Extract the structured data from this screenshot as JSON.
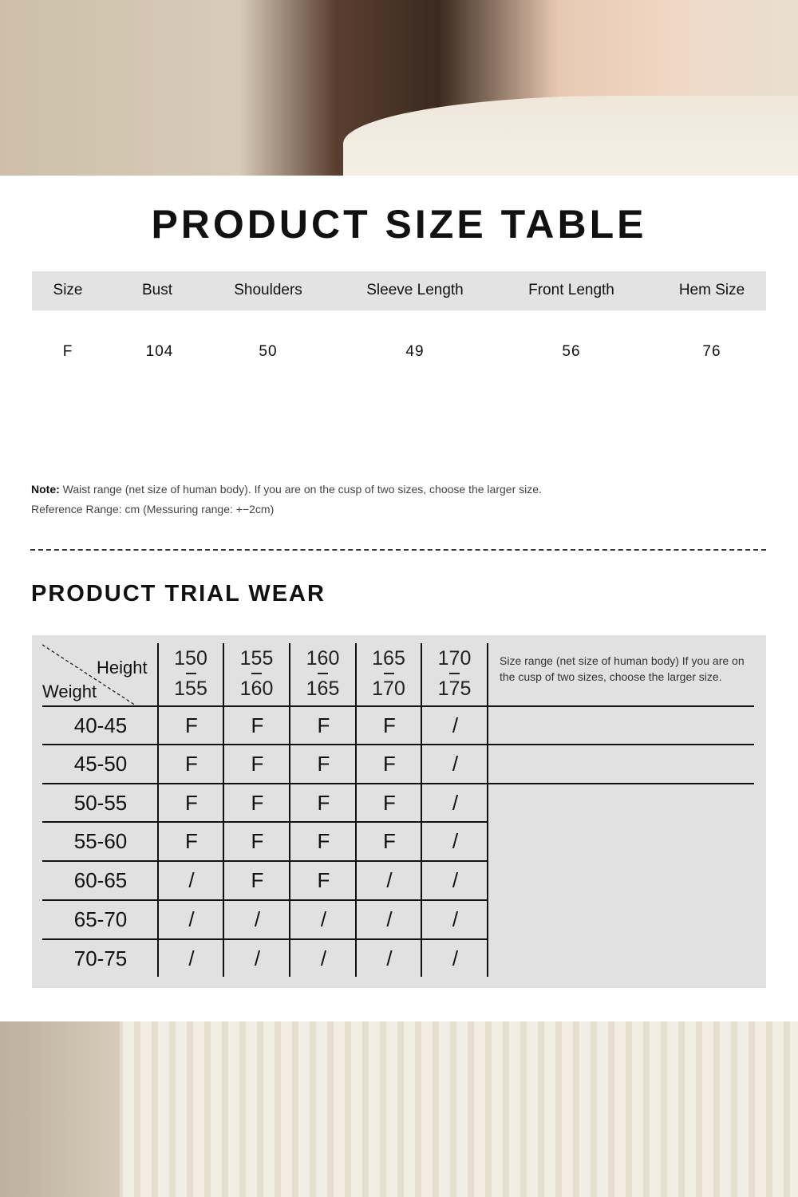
{
  "size_table": {
    "title": "PRODUCT SIZE TABLE",
    "headers": [
      "Size",
      "Bust",
      "Shoulders",
      "Sleeve Length",
      "Front Length",
      "Hem Size"
    ],
    "rows": [
      [
        "F",
        "104",
        "50",
        "49",
        "56",
        "76"
      ]
    ],
    "note_label": "Note:",
    "note_text": " Waist range (net size of human body). If you are on the cusp of two sizes, choose the larger size.",
    "reference": "Reference Range: cm (Messuring range: +−2cm)"
  },
  "trial_wear": {
    "title": "PRODUCT TRIAL WEAR",
    "corner_height": "Height",
    "corner_weight": "Weight",
    "heights": [
      [
        "150",
        "155"
      ],
      [
        "155",
        "160"
      ],
      [
        "160",
        "165"
      ],
      [
        "165",
        "170"
      ],
      [
        "170",
        "175"
      ]
    ],
    "side_note": "Size range (net size of human body) If you are on the cusp of two sizes, choose the larger size.",
    "weights": [
      "40-45",
      "45-50",
      "50-55",
      "55-60",
      "60-65",
      "65-70",
      "70-75"
    ],
    "cells": [
      [
        "F",
        "F",
        "F",
        "F",
        "/"
      ],
      [
        "F",
        "F",
        "F",
        "F",
        "/"
      ],
      [
        "F",
        "F",
        "F",
        "F",
        "/"
      ],
      [
        "F",
        "F",
        "F",
        "F",
        "/"
      ],
      [
        "/",
        "F",
        "F",
        "/",
        "/"
      ],
      [
        "/",
        "/",
        "/",
        "/",
        "/"
      ],
      [
        "/",
        "/",
        "/",
        "/",
        "/"
      ]
    ]
  }
}
